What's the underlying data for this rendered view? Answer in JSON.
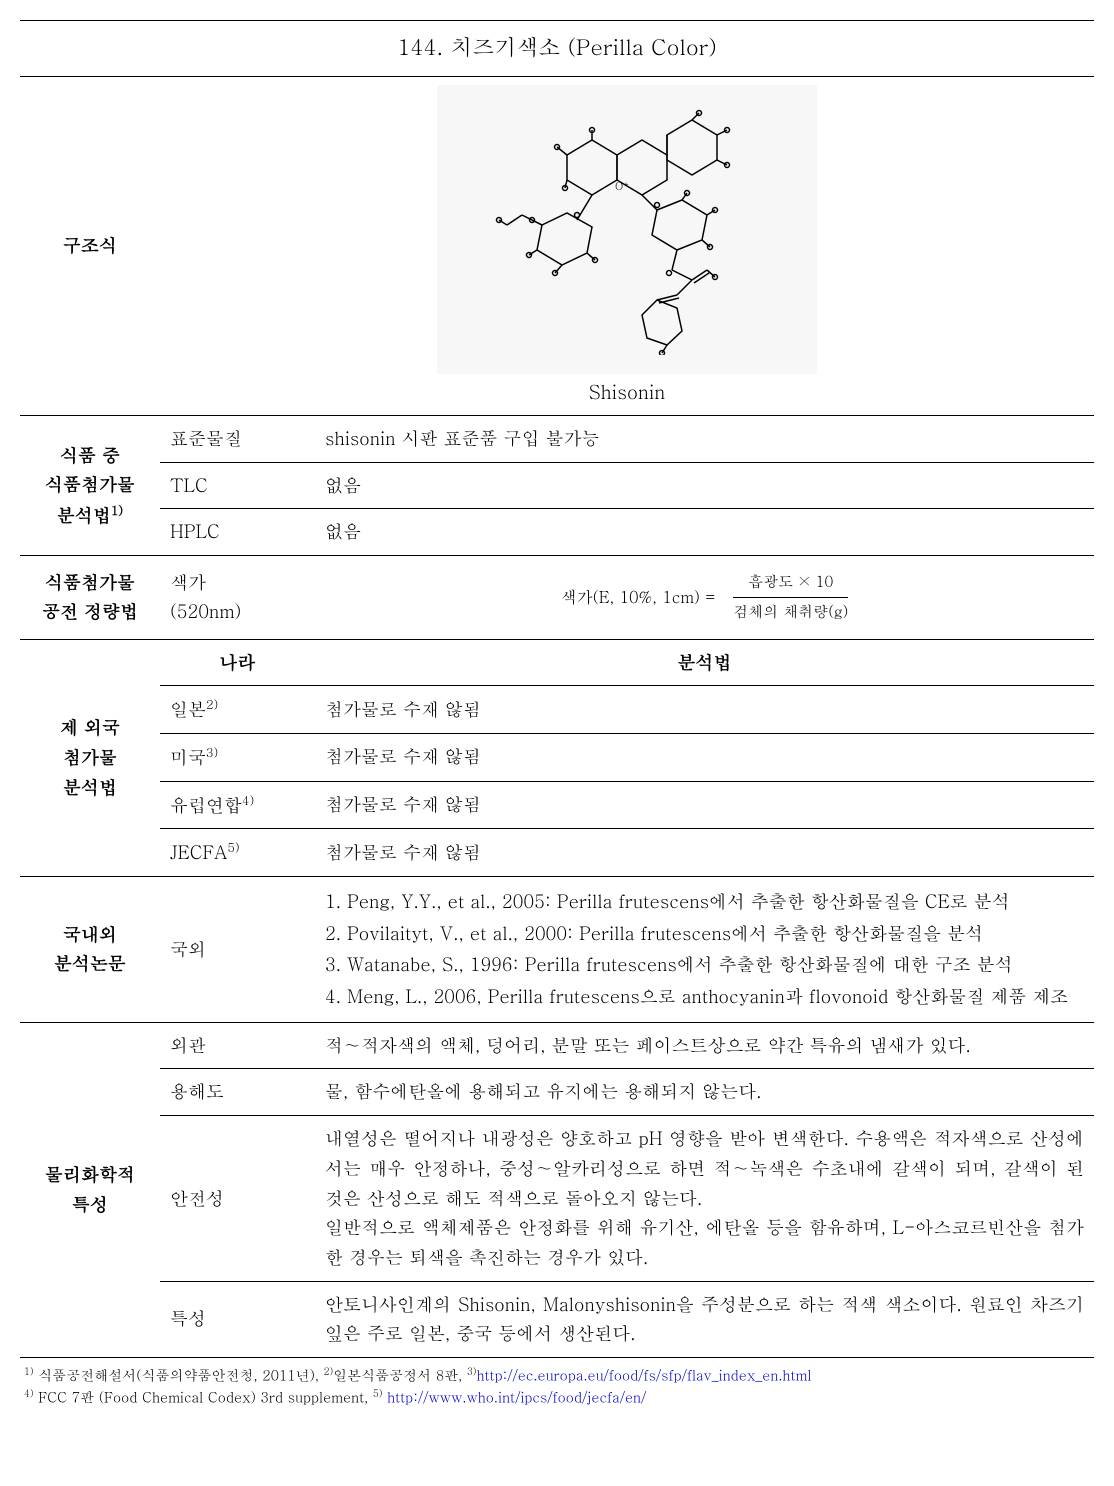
{
  "title": "144. 치즈기색소 (Perilla Color)",
  "rows": {
    "structure_label": "구조식",
    "structure_caption": "Shisonin",
    "analysis_label": "식품 중\n식품첨가물\n분석법",
    "analysis_sup": "1)",
    "analysis": {
      "stdmat_label": "표준물질",
      "stdmat_val": "shisonin 시판 표준품 구입 불가능",
      "tlc_label": "TLC",
      "tlc_val": "없음",
      "hplc_label": "HPLC",
      "hplc_val": "없음"
    },
    "quant_label": "식품첨가물\n공전 정량법",
    "quant_sub": "색가\n(520nm)",
    "formula_lhs": "색가(E, 10%, 1cm)  =",
    "formula_num": "흡광도 × 10",
    "formula_den": "검체의 채취량(g)",
    "foreign_label": "제 외국\n첨가물\n분석법",
    "foreign_hdr_country": "나라",
    "foreign_hdr_method": "분석법",
    "foreign": [
      {
        "country": "일본",
        "sup": "2)",
        "val": "첨가물로 수재 않됨"
      },
      {
        "country": "미국",
        "sup": "3)",
        "val": "첨가물로 수재 않됨"
      },
      {
        "country": "유럽연합",
        "sup": "4)",
        "val": "첨가물로 수재 않됨"
      },
      {
        "country": "JECFA",
        "sup": "5)",
        "val": "첨가물로 수재 않됨"
      }
    ],
    "papers_label": "국내외\n분석논문",
    "papers_sub": "국외",
    "papers": [
      "1. Peng, Y.Y., et al., 2005: Perilla frutescens에서 추출한 항산화물질을 CE로 분석",
      "2. Povilaityt, V., et al., 2000: Perilla frutescens에서 추출한 항산화물질을 분석",
      "3. Watanabe, S., 1996: Perilla frutescens에서 추출한 항산화물질에 대한 구조 분석",
      "4. Meng, L., 2006, Perilla frutescens으로 anthocyanin과 flovonoid 항산화물질 제품 제조"
    ],
    "phys_label": "물리화학적\n특성",
    "phys": {
      "appearance_label": "외관",
      "appearance_val": "적∼적자색의 액체, 덩어리, 분말 또는 페이스트상으로 약간 특유의 냄새가 있다.",
      "solubility_label": "용해도",
      "solubility_val": "물, 함수에탄올에 용해되고 유지에는 용해되지 않는다.",
      "stability_label": "안전성",
      "stability_val": "내열성은 떨어지나 내광성은 양호하고 pH 영향을 받아 변색한다. 수용액은 적자색으로 산성에서는 매우 안정하나, 중성∼알카리성으로 하면 적∼녹색은 수초내에 갈색이 되며, 갈색이 된 것은 산성으로 해도 적색으로 돌아오지 않는다.\n일반적으로 액체제품은 안정화를 위해 유기산, 에탄올 등을 함유하며, L-아스코르빈산을 첨가한 경우는 퇴색을 촉진하는 경우가 있다.",
      "char_label": "특성",
      "char_val": "안토니사인계의 Shisonin, Malonyshisonin을 주성분으로 하는 적색 색소이다. 원료인 차즈기 잎은 주로 일본, 중국 등에서 생산된다."
    }
  },
  "footnotes": {
    "f1": "식품공전해설서(식품의약품안전청, 2011년),",
    "f2": "일본식품공정서 8판,",
    "f3_url": "http://ec.europa.eu/food/fs/sfp/flav_index_en.html",
    "f4": "FCC 7판 (Food Chemical Codex) 3rd  supplement,",
    "f5_url": "http://www.who.int/ipcs/food/jecfa/en/"
  }
}
